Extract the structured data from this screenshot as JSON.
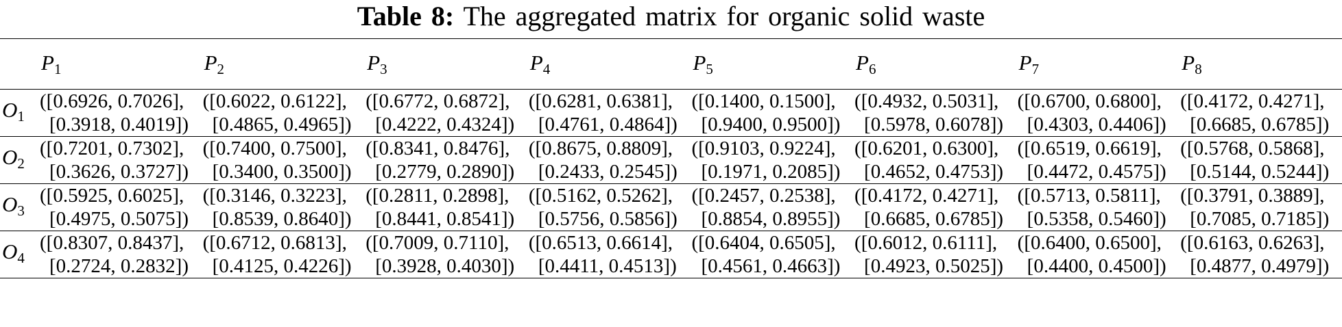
{
  "caption": {
    "label": "Table 8:",
    "text": "The aggregated matrix for organic solid waste"
  },
  "columns": [
    {
      "sym": "P",
      "sub": "1"
    },
    {
      "sym": "P",
      "sub": "2"
    },
    {
      "sym": "P",
      "sub": "3"
    },
    {
      "sym": "P",
      "sub": "4"
    },
    {
      "sym": "P",
      "sub": "5"
    },
    {
      "sym": "P",
      "sub": "6"
    },
    {
      "sym": "P",
      "sub": "7"
    },
    {
      "sym": "P",
      "sub": "8"
    }
  ],
  "rows": [
    {
      "sym": "O",
      "sub": "1",
      "cells": [
        {
          "l1": "([0.6926, 0.7026],",
          "l2": "[0.3918, 0.4019])"
        },
        {
          "l1": "([0.6022, 0.6122],",
          "l2": "[0.4865, 0.4965])"
        },
        {
          "l1": "([0.6772, 0.6872],",
          "l2": "[0.4222, 0.4324])"
        },
        {
          "l1": "([0.6281, 0.6381],",
          "l2": "[0.4761, 0.4864])"
        },
        {
          "l1": "([0.1400, 0.1500],",
          "l2": "[0.9400, 0.9500])"
        },
        {
          "l1": "([0.4932, 0.5031],",
          "l2": "[0.5978, 0.6078])"
        },
        {
          "l1": "([0.6700, 0.6800],",
          "l2": "[0.4303, 0.4406])"
        },
        {
          "l1": "([0.4172, 0.4271],",
          "l2": "[0.6685, 0.6785])"
        }
      ]
    },
    {
      "sym": "O",
      "sub": "2",
      "cells": [
        {
          "l1": "([0.7201, 0.7302],",
          "l2": "[0.3626, 0.3727])"
        },
        {
          "l1": "([0.7400, 0.7500],",
          "l2": "[0.3400, 0.3500])"
        },
        {
          "l1": "([0.8341, 0.8476],",
          "l2": "[0.2779, 0.2890])"
        },
        {
          "l1": "([0.8675, 0.8809],",
          "l2": "[0.2433, 0.2545])"
        },
        {
          "l1": "([0.9103, 0.9224],",
          "l2": "[0.1971, 0.2085])"
        },
        {
          "l1": "([0.6201, 0.6300],",
          "l2": "[0.4652, 0.4753])"
        },
        {
          "l1": "([0.6519, 0.6619],",
          "l2": "[0.4472, 0.4575])"
        },
        {
          "l1": "([0.5768, 0.5868],",
          "l2": "[0.5144, 0.5244])"
        }
      ]
    },
    {
      "sym": "O",
      "sub": "3",
      "cells": [
        {
          "l1": "([0.5925, 0.6025],",
          "l2": "[0.4975, 0.5075])"
        },
        {
          "l1": "([0.3146, 0.3223],",
          "l2": "[0.8539, 0.8640])"
        },
        {
          "l1": "([0.2811, 0.2898],",
          "l2": "[0.8441, 0.8541])"
        },
        {
          "l1": "([0.5162, 0.5262],",
          "l2": "[0.5756, 0.5856])"
        },
        {
          "l1": "([0.2457, 0.2538],",
          "l2": "[0.8854, 0.8955])"
        },
        {
          "l1": "([0.4172, 0.4271],",
          "l2": "[0.6685, 0.6785])"
        },
        {
          "l1": "([0.5713, 0.5811],",
          "l2": "[0.5358, 0.5460])"
        },
        {
          "l1": "([0.3791, 0.3889],",
          "l2": "[0.7085, 0.7185])"
        }
      ]
    },
    {
      "sym": "O",
      "sub": "4",
      "cells": [
        {
          "l1": "([0.8307, 0.8437],",
          "l2": "[0.2724, 0.2832])"
        },
        {
          "l1": "([0.6712, 0.6813],",
          "l2": "[0.4125, 0.4226])"
        },
        {
          "l1": "([0.7009, 0.7110],",
          "l2": "[0.3928, 0.4030])"
        },
        {
          "l1": "([0.6513, 0.6614],",
          "l2": "[0.4411, 0.4513])"
        },
        {
          "l1": "([0.6404, 0.6505],",
          "l2": "[0.4561, 0.4663])"
        },
        {
          "l1": "([0.6012, 0.6111],",
          "l2": "[0.4923, 0.5025])"
        },
        {
          "l1": "([0.6400, 0.6500],",
          "l2": "[0.4400, 0.4500])"
        },
        {
          "l1": "([0.6163, 0.6263],",
          "l2": "[0.4877, 0.4979])"
        }
      ]
    }
  ]
}
